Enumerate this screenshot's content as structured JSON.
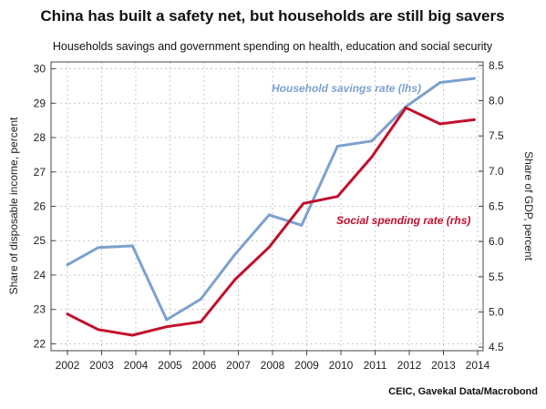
{
  "chart_data": {
    "type": "line",
    "title": "China has built a safety net, but households are still big savers",
    "subtitle": "Households savings and government spending on health, education and social security",
    "ylabel_left": "Share of disposable income, percent",
    "ylabel_right": "Share of GDP, percent",
    "x": [
      "2002",
      "2003",
      "2004",
      "2005",
      "2006",
      "2007",
      "2008",
      "2009",
      "2010",
      "2011",
      "2012",
      "2013",
      "2014"
    ],
    "ylim_left": [
      21.8,
      30.2
    ],
    "ylim_right": [
      4.45,
      8.55
    ],
    "yticks_left": [
      "22",
      "23",
      "24",
      "25",
      "26",
      "27",
      "28",
      "29",
      "30"
    ],
    "yticks_right": [
      "4.5",
      "5.0",
      "5.5",
      "6.0",
      "6.5",
      "7.0",
      "7.5",
      "8.0",
      "8.5"
    ],
    "grid": true,
    "series": [
      {
        "name": "Household savings rate (lhs)",
        "axis": "left",
        "color": "#7ba1cf",
        "x": [
          2002.0,
          2002.9,
          2003.9,
          2004.9,
          2005.9,
          2006.9,
          2007.9,
          2008.85,
          2009.9,
          2010.9,
          2011.9,
          2012.9,
          2013.9
        ],
        "values": [
          24.3,
          24.8,
          24.85,
          22.7,
          23.3,
          24.6,
          25.75,
          25.45,
          27.75,
          27.9,
          28.9,
          29.6,
          29.72
        ]
      },
      {
        "name": "Social spending rate (rhs)",
        "axis": "right",
        "color": "#c0102c",
        "x": [
          2002.0,
          2002.9,
          2003.9,
          2004.9,
          2005.9,
          2006.9,
          2007.9,
          2008.9,
          2009.9,
          2010.9,
          2011.9,
          2012.9,
          2013.9
        ],
        "values": [
          4.97,
          4.75,
          4.67,
          4.79,
          4.86,
          5.46,
          5.92,
          6.54,
          6.64,
          7.2,
          7.9,
          7.67,
          7.73
        ]
      }
    ],
    "annotations": [
      {
        "text": "Household savings rate (lhs)",
        "color": "#7ba1cf"
      },
      {
        "text": "Social spending rate (rhs)",
        "color": "#c0102c"
      }
    ],
    "source": "CEIC, Gavekal Data/Macrobond"
  }
}
